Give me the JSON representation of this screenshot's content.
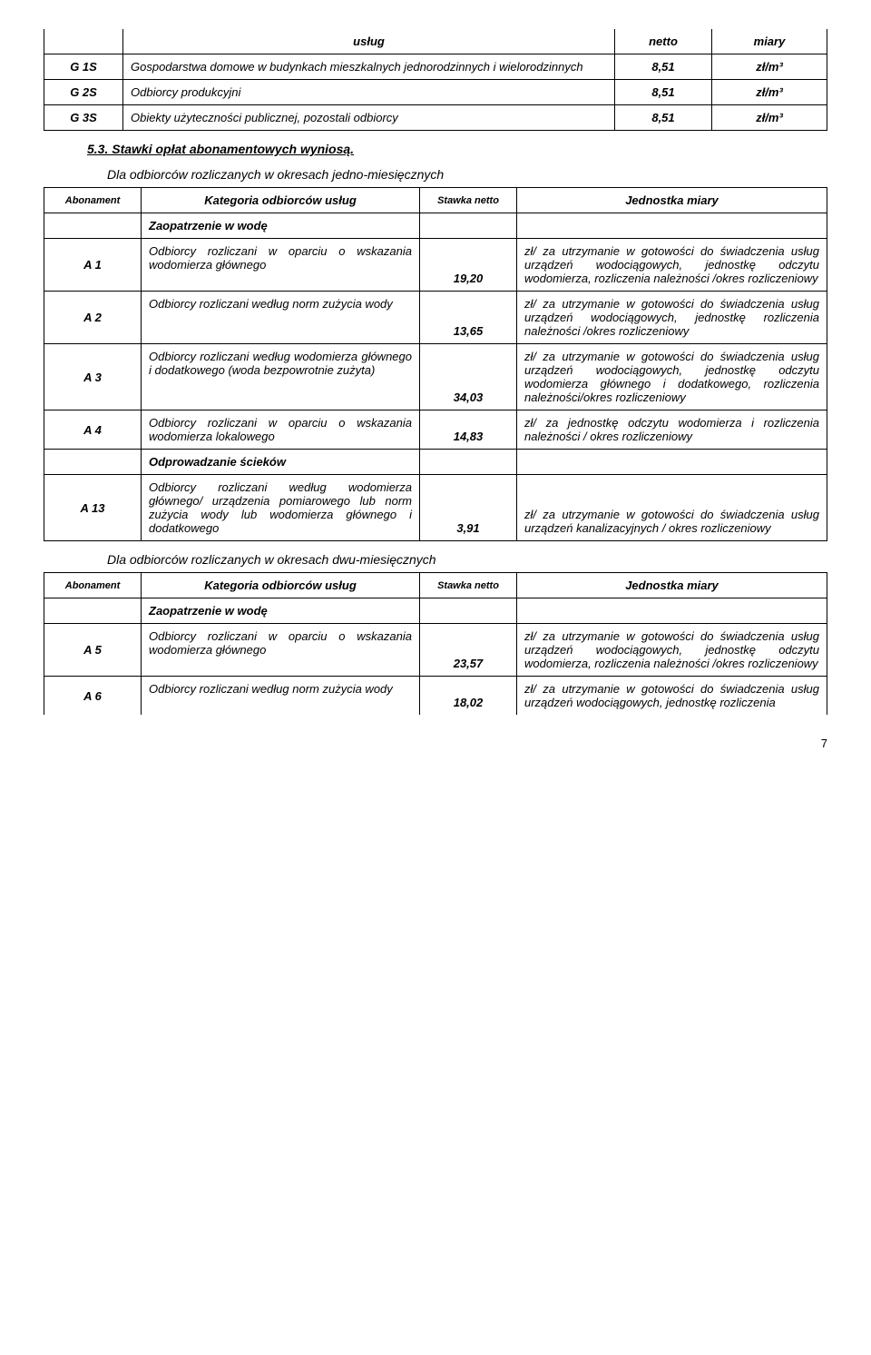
{
  "table1": {
    "hdr_uslug": "usług",
    "hdr_netto": "netto",
    "hdr_miary": "miary",
    "rows": [
      {
        "code": "G 1S",
        "desc": "Gospodarstwa domowe w budynkach mieszkalnych jednorodzinnych i wielorodzinnych",
        "val": "8,51",
        "unit": "zł/m³"
      },
      {
        "code": "G 2S",
        "desc": "Odbiorcy produkcyjni",
        "val": "8,51",
        "unit": "zł/m³"
      },
      {
        "code": "G 3S",
        "desc": "Obiekty użyteczności publicznej, pozostali odbiorcy",
        "val": "8,51",
        "unit": "zł/m³"
      }
    ]
  },
  "sec53": "5.3.   Stawki opłat abonamentowych wyniosą.",
  "sub1": "Dla odbiorców rozliczanych w okresach jedno-miesięcznych",
  "sub2": "Dla odbiorców rozliczanych w okresach dwu-miesięcznych",
  "hdr": {
    "abon": "Abonament",
    "kat": "Kategoria odbiorców usług",
    "stawka": "Stawka netto",
    "jedn": "Jednostka miary"
  },
  "zaop": "Zaopatrzenie w wodę",
  "odpr": "Odprowadzanie ścieków",
  "t2": [
    {
      "code": "A 1",
      "cat": "Odbiorcy rozliczani w oparciu o wskazania wodomierza głównego",
      "val": "19,20",
      "unit": "zł/ za utrzymanie w gotowości do świadczenia usług urządzeń wodociągowych, jednostkę odczytu wodomierza, rozliczenia należności /okres rozliczeniowy"
    },
    {
      "code": "A 2",
      "cat": "Odbiorcy rozliczani według norm zużycia wody",
      "val": "13,65",
      "unit": "zł/ za utrzymanie w gotowości do świadczenia usług urządzeń wodociągowych, jednostkę rozliczenia należności /okres rozliczeniowy"
    },
    {
      "code": "A 3",
      "cat": "Odbiorcy rozliczani według wodomierza głównego i dodatkowego (woda bezpowrotnie zużyta)",
      "val": "34,03",
      "unit": "zł/ za utrzymanie w gotowości do świadczenia usług urządzeń wodociągowych, jednostkę odczytu wodomierza głównego i dodatkowego, rozliczenia należności/okres rozliczeniowy"
    },
    {
      "code": "A 4",
      "cat": "Odbiorcy rozliczani w oparciu o wskazania wodomierza lokalowego",
      "val": "14,83",
      "unit": "zł/ za jednostkę odczytu wodomierza i rozliczenia należności / okres rozliczeniowy"
    }
  ],
  "t2b": [
    {
      "code": "A 13",
      "cat": "Odbiorcy rozliczani według wodomierza głównego/ urządzenia pomiarowego lub norm zużycia wody lub wodomierza głównego i dodatkowego",
      "val": "3,91",
      "unit": "zł/ za utrzymanie w gotowości do świadczenia usług urządzeń kanalizacyjnych / okres rozliczeniowy"
    }
  ],
  "t3": [
    {
      "code": "A 5",
      "cat": "Odbiorcy rozliczani w oparciu o wskazania wodomierza głównego",
      "val": "23,57",
      "unit": "zł/ za utrzymanie w gotowości do świadczenia usług urządzeń wodociągowych, jednostkę odczytu wodomierza, rozliczenia należności /okres rozliczeniowy"
    },
    {
      "code": "A 6",
      "cat": "Odbiorcy rozliczani według norm zużycia wody",
      "val": "18,02",
      "unit": "zł/ za utrzymanie w gotowości do świadczenia usług urządzeń wodociągowych, jednostkę rozliczenia"
    }
  ],
  "pagenum": "7"
}
